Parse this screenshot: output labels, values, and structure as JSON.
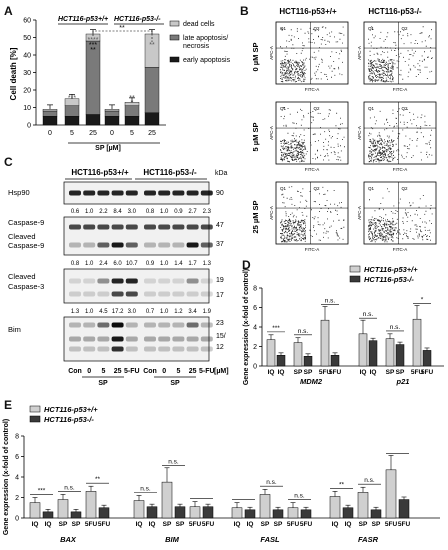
{
  "panels": {
    "A": "A",
    "B": "B",
    "C": "C",
    "D": "D",
    "E": "E"
  },
  "panelA": {
    "ylabel": "Cell death [%]",
    "xlabel": "SP [µM]",
    "group_plus": "HCT116-p53+/+",
    "group_minus": "HCT116-p53-/-",
    "legend": [
      "dead cells",
      "late apoptosis/ necrosis",
      "early apoptosis"
    ],
    "yticks": [
      "0",
      "10",
      "20",
      "30",
      "40",
      "50",
      "60"
    ],
    "xticks": [
      "0",
      "5",
      "25",
      "0",
      "5",
      "25"
    ],
    "sig": {
      "pp_5": "***",
      "pp_25_top": "****",
      "pp_25_mid": "***",
      "pp_25_bot": "**",
      "mm_5_top": "**",
      "mm_5_mid": "*",
      "mm_25": "**",
      "bracket": "**"
    }
  },
  "chart_data": [
    {
      "type": "bar",
      "title": "",
      "xlabel": "SP [µM]",
      "ylabel": "Cell death [%]",
      "ylim": [
        0,
        60
      ],
      "categories": [
        "p53+/+ 0",
        "p53+/+ 5",
        "p53+/+ 25",
        "p53-/- 0",
        "p53-/- 5",
        "p53-/- 25"
      ],
      "series": [
        {
          "name": "early apoptosis",
          "values": [
            5,
            5,
            6,
            5,
            5,
            7
          ]
        },
        {
          "name": "late apoptosis/ necrosis",
          "values": [
            3,
            6,
            42,
            3,
            6,
            26
          ]
        },
        {
          "name": "dead cells",
          "values": [
            1,
            4,
            4,
            1,
            2,
            19
          ]
        }
      ]
    },
    {
      "type": "bar",
      "title": "",
      "ylabel": "Gene expression (x-fold of control)",
      "ylim": [
        0,
        8
      ],
      "categories": [
        "MDM2 IQ",
        "MDM2 SP",
        "MDM2 5FU",
        "p21 IQ",
        "p21 SP",
        "p21 5FU"
      ],
      "series": [
        {
          "name": "HCT116-p53+/+",
          "values": [
            2.7,
            2.4,
            4.7,
            3.3,
            2.8,
            4.8
          ]
        },
        {
          "name": "HCT116-p53-/-",
          "values": [
            1.1,
            1.0,
            1.1,
            2.6,
            2.2,
            1.6
          ]
        }
      ]
    },
    {
      "type": "bar",
      "title": "",
      "ylabel": "Gene expression (x-fold of control)",
      "ylim": [
        0,
        8
      ],
      "categories": [
        "BAX IQ",
        "BAX SP",
        "BAX 5FU",
        "BIM IQ",
        "BIM SP",
        "BIM 5FU",
        "FASL IQ",
        "FASL SP",
        "FASL 5FU",
        "FASR IQ",
        "FASR SP",
        "FASR 5FU"
      ],
      "series": [
        {
          "name": "HCT116-p53+/+",
          "values": [
            1.5,
            1.8,
            2.6,
            1.7,
            3.5,
            1.1,
            1.0,
            2.3,
            1.0,
            2.1,
            2.5,
            4.7
          ]
        },
        {
          "name": "HCT116-p53-/-",
          "values": [
            0.6,
            0.6,
            1.0,
            1.1,
            1.1,
            1.1,
            0.8,
            0.8,
            0.8,
            1.0,
            0.8,
            1.8
          ]
        }
      ]
    }
  ],
  "panelB": {
    "col_plus": "HCT116-p53+/+",
    "col_minus": "HCT116-p53-/-",
    "rows": [
      "0 µM SP",
      "5 µM SP",
      "25 µM SP"
    ],
    "xaxis": "FITC-A",
    "yaxis": "APC-A",
    "quadrants": [
      "Q1",
      "Q2"
    ]
  },
  "panelC": {
    "group_plus": "HCT116-p53+/+",
    "group_minus": "HCT116-p53-/-",
    "kda": "kDa",
    "blots": [
      {
        "label": "Hsp90",
        "mw": [
          "90"
        ],
        "ratios": null
      },
      {
        "label": "Caspase-9 / Cleaved Caspase-9",
        "mw": [
          "47",
          "37"
        ],
        "ratios": [
          "0.6",
          "1.0",
          "2.2",
          "8.4",
          "3.0",
          "0.8",
          "1.0",
          "0.9",
          "2.7",
          "2.3"
        ]
      },
      {
        "label": "Cleaved Caspase-3",
        "mw": [
          "19",
          "17"
        ],
        "ratios": [
          "0.8",
          "1.0",
          "2.4",
          "6.0",
          "10.7",
          "0.9",
          "1.0",
          "1.4",
          "1.7",
          "1.3"
        ]
      },
      {
        "label": "Bim",
        "mw": [
          "23",
          "15/",
          "12"
        ],
        "ratios": [
          "1.3",
          "1.0",
          "4.5",
          "17.2",
          "3.0",
          "0.7",
          "1.0",
          "1.2",
          "3.4",
          "1.9"
        ]
      }
    ],
    "lanes": [
      "Con",
      "0",
      "5",
      "25",
      "5-FU",
      "Con",
      "0",
      "5",
      "25",
      "5-FU"
    ],
    "unit": "[µM]",
    "sp": "SP"
  },
  "panelD": {
    "legend": [
      "HCT116-p53+/+",
      "HCT116-p53-/-"
    ],
    "ylabel": "Gene expression (x-fold of control)",
    "yticks": [
      "0",
      "2",
      "4",
      "6",
      "8"
    ],
    "xcats": [
      "IQ",
      "IQ",
      "SP",
      "SP",
      "5FU",
      "5FU",
      "IQ",
      "IQ",
      "SP",
      "SP",
      "5FU",
      "5FU"
    ],
    "genes": [
      "MDM2",
      "p21"
    ],
    "sig": [
      "***",
      "n.s.",
      "n.s.",
      "n.s.",
      "n.s.",
      "*"
    ]
  },
  "panelE": {
    "legend": [
      "HCT116-p53+/+",
      "HCT116-p53-/-"
    ],
    "ylabel": "Gene expression (x-fold of control)",
    "yticks": [
      "0",
      "2",
      "4",
      "6",
      "8"
    ],
    "xcats": [
      "IQ",
      "IQ",
      "SP",
      "SP",
      "5FU",
      "5FU"
    ],
    "genes": [
      "BAX",
      "BIM",
      "FASL",
      "FASR"
    ],
    "sig": [
      "***",
      "n.s.",
      "**",
      "n.s.",
      "n.s.",
      "n.s.",
      "n.s.",
      "**",
      "n.s."
    ]
  }
}
